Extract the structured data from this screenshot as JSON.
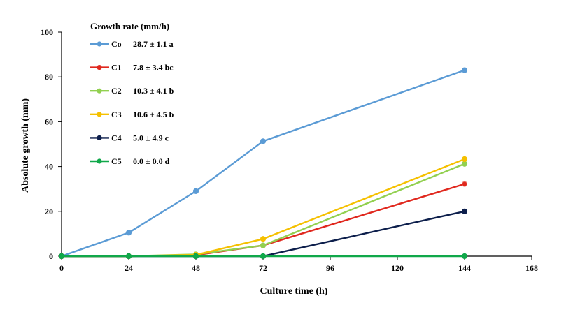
{
  "chart_data": {
    "type": "line",
    "title": "",
    "xlabel": "Culture time (h)",
    "ylabel": "Absolute growth (mm)",
    "xlim": [
      0,
      168
    ],
    "ylim": [
      0,
      100
    ],
    "xticks": [
      0,
      24,
      48,
      72,
      96,
      120,
      144,
      168
    ],
    "yticks": [
      0,
      20,
      40,
      60,
      80,
      100
    ],
    "grid": false,
    "legend_title": "Growth rate (mm/h)",
    "legend_position": "top-left",
    "x": [
      0,
      24,
      48,
      72,
      144
    ],
    "series": [
      {
        "name": "Co",
        "rate": "28.7 ± 1.1 a",
        "color": "#5b9bd5",
        "values": [
          0,
          10.5,
          29,
          51.3,
          83
        ]
      },
      {
        "name": "C1",
        "rate": "7.8 ± 3.4 bc",
        "color": "#e0281e",
        "values": [
          0,
          0,
          0.5,
          4.8,
          32.2
        ]
      },
      {
        "name": "C2",
        "rate": "10.3 ± 4.1 b",
        "color": "#92d050",
        "values": [
          0,
          0,
          0.8,
          4.8,
          41.2
        ]
      },
      {
        "name": "C3",
        "rate": "10.6 ± 4.5 b",
        "color": "#f5c000",
        "values": [
          0,
          0,
          0.6,
          7.7,
          43.3
        ]
      },
      {
        "name": "C4",
        "rate": "5.0 ± 4.9 c",
        "color": "#0d1f4c",
        "values": [
          0,
          0,
          0,
          0,
          20
        ]
      },
      {
        "name": "C5",
        "rate": "0.0 ± 0.0 d",
        "color": "#10a84a",
        "values": [
          0,
          0,
          0,
          0,
          0
        ]
      }
    ]
  }
}
